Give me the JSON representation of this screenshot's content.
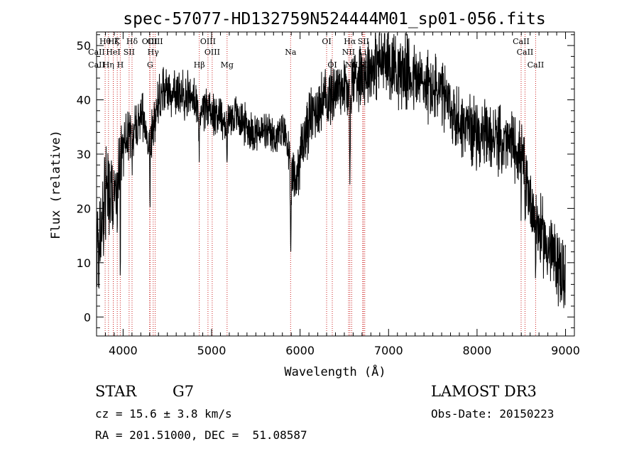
{
  "chart_data": {
    "type": "line",
    "title": "spec-57077-HD132759N524444M01_sp01-056.fits",
    "xlabel": "Wavelength (Å)",
    "ylabel": "Flux (relative)",
    "xlim": [
      3700,
      9100
    ],
    "ylim": [
      -3.5,
      52.5
    ],
    "xticks": [
      4000,
      5000,
      6000,
      7000,
      8000,
      9000
    ],
    "yticks": [
      0,
      10,
      20,
      30,
      40,
      50
    ],
    "grid": false,
    "lines": [
      {
        "label": "CaII",
        "x": 3700,
        "row": 1
      },
      {
        "label": "CaII",
        "x": 3700,
        "row": 2
      },
      {
        "label": "Hθ",
        "x": 3797,
        "row": 0
      },
      {
        "label": "Hη",
        "x": 3835,
        "row": 2
      },
      {
        "label": "Hζ",
        "x": 3889,
        "row": 0
      },
      {
        "label": "HeI",
        "x": 3889,
        "row": 1
      },
      {
        "label": "K",
        "x": 3934,
        "row": 0
      },
      {
        "label": "H",
        "x": 3968,
        "row": 2
      },
      {
        "label": "SII",
        "x": 4068,
        "row": 1
      },
      {
        "label": "Hδ",
        "x": 4101,
        "row": 0
      },
      {
        "label": "OIII",
        "x": 4300,
        "row": 0
      },
      {
        "label": "G",
        "x": 4305,
        "row": 2
      },
      {
        "label": "Hγ",
        "x": 4340,
        "row": 1
      },
      {
        "label": "OIII",
        "x": 4363,
        "row": 0
      },
      {
        "label": "Hβ",
        "x": 4861,
        "row": 2
      },
      {
        "label": "OIII",
        "x": 4959,
        "row": 0
      },
      {
        "label": "OIII",
        "x": 5007,
        "row": 1
      },
      {
        "label": "Mg",
        "x": 5175,
        "row": 2
      },
      {
        "label": "Na",
        "x": 5893,
        "row": 1
      },
      {
        "label": "OI",
        "x": 6300,
        "row": 0
      },
      {
        "label": "OI",
        "x": 6364,
        "row": 2
      },
      {
        "label": "NII",
        "x": 6548,
        "row": 1
      },
      {
        "label": "Hα",
        "x": 6563,
        "row": 0
      },
      {
        "label": "NII",
        "x": 6583,
        "row": 2
      },
      {
        "label": "Li",
        "x": 6708,
        "row": 1
      },
      {
        "label": "SII",
        "x": 6716,
        "row": 0
      },
      {
        "label": "SII",
        "x": 6731,
        "row": 2
      },
      {
        "label": "CaII",
        "x": 8498,
        "row": 0
      },
      {
        "label": "CaII",
        "x": 8542,
        "row": 1
      },
      {
        "label": "CaII",
        "x": 8662,
        "row": 2
      }
    ],
    "spectrum": {
      "x_start": 3700,
      "x_end": 9000,
      "smooth": [
        [
          3700,
          8
        ],
        [
          3750,
          16
        ],
        [
          3800,
          20
        ],
        [
          3850,
          22
        ],
        [
          3900,
          24
        ],
        [
          3950,
          27
        ],
        [
          4000,
          32
        ],
        [
          4050,
          34
        ],
        [
          4100,
          33
        ],
        [
          4150,
          35
        ],
        [
          4200,
          37
        ],
        [
          4250,
          36
        ],
        [
          4300,
          32
        ],
        [
          4350,
          36
        ],
        [
          4400,
          40
        ],
        [
          4450,
          42
        ],
        [
          4500,
          42
        ],
        [
          4600,
          41
        ],
        [
          4700,
          41
        ],
        [
          4800,
          40
        ],
        [
          4850,
          37
        ],
        [
          4900,
          39
        ],
        [
          5000,
          38
        ],
        [
          5100,
          37
        ],
        [
          5150,
          36
        ],
        [
          5200,
          37
        ],
        [
          5300,
          37
        ],
        [
          5400,
          35
        ],
        [
          5500,
          34
        ],
        [
          5600,
          34
        ],
        [
          5700,
          33
        ],
        [
          5800,
          34
        ],
        [
          5850,
          33
        ],
        [
          5900,
          26
        ],
        [
          5950,
          25
        ],
        [
          6000,
          30
        ],
        [
          6100,
          36
        ],
        [
          6200,
          39
        ],
        [
          6300,
          40
        ],
        [
          6400,
          42
        ],
        [
          6500,
          43
        ],
        [
          6550,
          40
        ],
        [
          6600,
          44
        ],
        [
          6700,
          45
        ],
        [
          6800,
          46
        ],
        [
          6900,
          47
        ],
        [
          7000,
          47
        ],
        [
          7100,
          46
        ],
        [
          7200,
          45
        ],
        [
          7300,
          44
        ],
        [
          7400,
          43
        ],
        [
          7500,
          42
        ],
        [
          7600,
          41
        ],
        [
          7700,
          38
        ],
        [
          7800,
          36
        ],
        [
          7900,
          35
        ],
        [
          8000,
          34
        ],
        [
          8100,
          33
        ],
        [
          8200,
          33
        ],
        [
          8300,
          32
        ],
        [
          8400,
          32
        ],
        [
          8500,
          30
        ],
        [
          8550,
          26
        ],
        [
          8600,
          22
        ],
        [
          8700,
          16
        ],
        [
          8800,
          13
        ],
        [
          8900,
          10
        ],
        [
          9000,
          7
        ]
      ],
      "noise": [
        [
          3700,
          12
        ],
        [
          3900,
          6
        ],
        [
          4200,
          4
        ],
        [
          5800,
          3
        ],
        [
          6000,
          5
        ],
        [
          6500,
          5
        ],
        [
          7000,
          6
        ],
        [
          8500,
          5
        ],
        [
          8800,
          6
        ],
        [
          9000,
          6
        ]
      ],
      "dips": [
        [
          3934,
          3,
          18
        ],
        [
          3968,
          3,
          22
        ],
        [
          4101,
          4,
          8
        ],
        [
          4305,
          5,
          8
        ],
        [
          4861,
          5,
          6
        ],
        [
          5175,
          5,
          10
        ],
        [
          5893,
          6,
          16
        ],
        [
          6563,
          4,
          20
        ],
        [
          8498,
          4,
          8
        ],
        [
          8542,
          4,
          10
        ],
        [
          8662,
          4,
          10
        ]
      ]
    }
  },
  "info": {
    "object_class": "STAR",
    "subclass": "G7",
    "survey": "LAMOST DR3",
    "cz": "cz = 15.6 ± 3.8 km/s",
    "obs_date": "Obs-Date: 20150223",
    "coords": "RA = 201.51000, DEC =  51.08587"
  }
}
